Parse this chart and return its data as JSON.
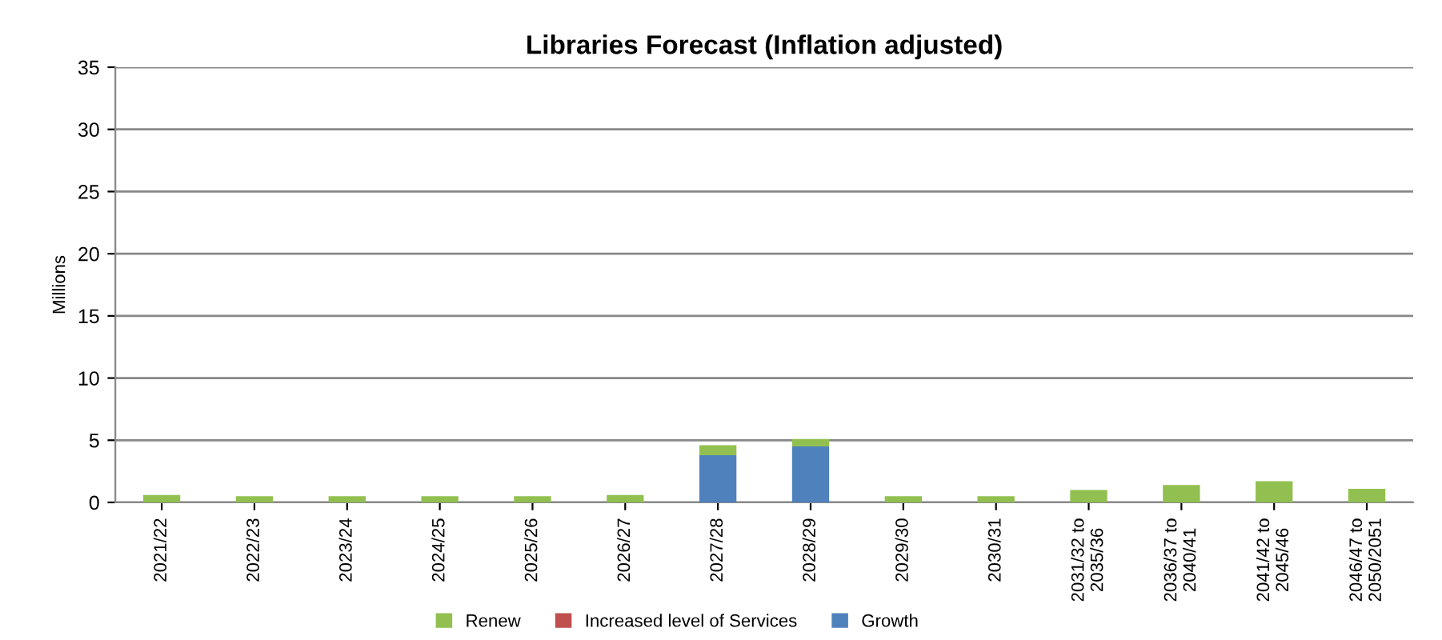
{
  "chart_data": {
    "type": "bar",
    "title": "Libraries Forecast (Inflation adjusted)",
    "ylabel": "Millions",
    "categories": [
      "2021/22",
      "2022/23",
      "2023/24",
      "2024/25",
      "2025/26",
      "2026/27",
      "2027/28",
      "2028/29",
      "2029/30",
      "2030/31",
      "2031/32 to\n2035/36",
      "2036/37 to\n2040/41",
      "2041/42 to\n2045/46",
      "2046/47 to\n2050/2051"
    ],
    "stacked": true,
    "series": [
      {
        "name": "Growth",
        "color": "#4f81bd",
        "values": [
          0,
          0,
          0,
          0,
          0,
          0,
          3.8,
          4.5,
          0,
          0,
          0,
          0,
          0,
          0
        ]
      },
      {
        "name": "Increased level of Services",
        "color": "#c0504d",
        "values": [
          0,
          0,
          0,
          0,
          0,
          0,
          0,
          0,
          0,
          0,
          0,
          0,
          0,
          0
        ]
      },
      {
        "name": "Renew",
        "color": "#92c050",
        "values": [
          0.6,
          0.5,
          0.5,
          0.5,
          0.5,
          0.6,
          0.8,
          0.6,
          0.5,
          0.5,
          1.0,
          1.4,
          1.7,
          1.1
        ]
      }
    ],
    "ylim": [
      0,
      35
    ],
    "yticks": [
      0,
      5,
      10,
      15,
      20,
      25,
      30,
      35
    ],
    "grid": "y",
    "legend": "bottom"
  }
}
